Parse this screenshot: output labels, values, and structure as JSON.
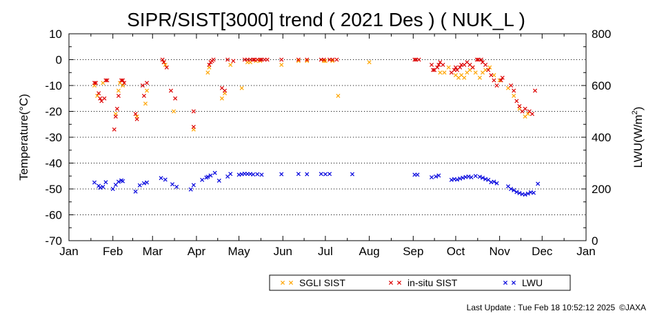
{
  "chart_data": {
    "type": "scatter",
    "title": "SIPR/SIST[3000] trend ( 2021 Des ) ( NUK_L )",
    "xlabel": "",
    "ylabel": "Temperature(°C)",
    "y2label": "LWU(W/m²)",
    "y2label_base": "LWU(W/m",
    "y2label_sup": "2",
    "y2label_end": ")",
    "x_unit": "day of year",
    "xlim": [
      0,
      365
    ],
    "ylim": [
      -70,
      10
    ],
    "y2lim": [
      0,
      800
    ],
    "x_ticks": [
      {
        "label": "Jan",
        "x": 0
      },
      {
        "label": "Feb",
        "x": 31
      },
      {
        "label": "Mar",
        "x": 59
      },
      {
        "label": "Apr",
        "x": 90
      },
      {
        "label": "May",
        "x": 120
      },
      {
        "label": "Jun",
        "x": 151
      },
      {
        "label": "Jul",
        "x": 181
      },
      {
        "label": "Aug",
        "x": 212
      },
      {
        "label": "Sep",
        "x": 243
      },
      {
        "label": "Oct",
        "x": 273
      },
      {
        "label": "Nov",
        "x": 304
      },
      {
        "label": "Dec",
        "x": 334
      },
      {
        "label": "Jan",
        "x": 365
      }
    ],
    "y_ticks": [
      10,
      0,
      -10,
      -20,
      -30,
      -40,
      -50,
      -60,
      -70
    ],
    "y2_ticks": [
      800,
      600,
      400,
      200,
      0
    ],
    "grid": "horizontal dotted",
    "legend_position": "bottom",
    "series": [
      {
        "name": "SGLI SIST",
        "axis": "left",
        "color": "#ffa500",
        "points": [
          [
            18,
            -10
          ],
          [
            20,
            -14
          ],
          [
            24,
            -9
          ],
          [
            33,
            -21
          ],
          [
            35,
            -12
          ],
          [
            36,
            -9
          ],
          [
            38,
            -10
          ],
          [
            48,
            -22
          ],
          [
            54,
            -17
          ],
          [
            55,
            -12
          ],
          [
            67,
            -1
          ],
          [
            68,
            -2
          ],
          [
            74,
            -20
          ],
          [
            88,
            -27
          ],
          [
            98,
            -5
          ],
          [
            99,
            -3
          ],
          [
            108,
            -15
          ],
          [
            110,
            -13
          ],
          [
            114,
            -2
          ],
          [
            122,
            -11
          ],
          [
            126,
            -1
          ],
          [
            128,
            -1
          ],
          [
            132,
            -0.5
          ],
          [
            135,
            -0.5
          ],
          [
            150,
            -2
          ],
          [
            162,
            -0.5
          ],
          [
            168,
            -0.5
          ],
          [
            180,
            -0.5
          ],
          [
            181,
            -0.5
          ],
          [
            186,
            -0.5
          ],
          [
            190,
            -14
          ],
          [
            212,
            -1
          ],
          [
            262,
            -5
          ],
          [
            265,
            -5
          ],
          [
            268,
            -3
          ],
          [
            273,
            -6
          ],
          [
            275,
            -7
          ],
          [
            277,
            -6
          ],
          [
            279,
            -7
          ],
          [
            281,
            -5
          ],
          [
            283,
            -4
          ],
          [
            285,
            -3
          ],
          [
            287,
            -5
          ],
          [
            290,
            -7
          ],
          [
            292,
            -5
          ],
          [
            294,
            -4
          ],
          [
            297,
            -3
          ],
          [
            300,
            -6
          ],
          [
            304,
            -8
          ],
          [
            310,
            -11
          ],
          [
            314,
            -14
          ],
          [
            318,
            -19
          ],
          [
            322,
            -22
          ],
          [
            324,
            -21
          ]
        ]
      },
      {
        "name": "in-situ SIST",
        "axis": "left",
        "color": "#dd0000",
        "points": [
          [
            18,
            -9
          ],
          [
            19,
            -9
          ],
          [
            21,
            -13
          ],
          [
            22,
            -15
          ],
          [
            23,
            -16
          ],
          [
            25,
            -15
          ],
          [
            26,
            -8
          ],
          [
            27,
            -8
          ],
          [
            32,
            -27
          ],
          [
            33,
            -22
          ],
          [
            34,
            -19
          ],
          [
            35,
            -14
          ],
          [
            37,
            -8
          ],
          [
            38,
            -8
          ],
          [
            39,
            -9
          ],
          [
            47,
            -21
          ],
          [
            48,
            -23
          ],
          [
            52,
            -10
          ],
          [
            53,
            -14
          ],
          [
            55,
            -9
          ],
          [
            66,
            0
          ],
          [
            67,
            -1
          ],
          [
            69,
            -3
          ],
          [
            72,
            -12
          ],
          [
            75,
            -15
          ],
          [
            88,
            -20
          ],
          [
            88,
            -26
          ],
          [
            99,
            -2
          ],
          [
            100,
            -1
          ],
          [
            101,
            -0.5
          ],
          [
            102,
            0
          ],
          [
            108,
            -11
          ],
          [
            110,
            -12
          ],
          [
            112,
            0
          ],
          [
            116,
            -0.5
          ],
          [
            124,
            0
          ],
          [
            126,
            0
          ],
          [
            128,
            0
          ],
          [
            130,
            0
          ],
          [
            131,
            0
          ],
          [
            133,
            0
          ],
          [
            135,
            0
          ],
          [
            136,
            0
          ],
          [
            138,
            0
          ],
          [
            140,
            0
          ],
          [
            150,
            0
          ],
          [
            162,
            0
          ],
          [
            168,
            0
          ],
          [
            178,
            0
          ],
          [
            180,
            0
          ],
          [
            184,
            0
          ],
          [
            186,
            0
          ],
          [
            189,
            0
          ],
          [
            244,
            0
          ],
          [
            245,
            0
          ],
          [
            247,
            0
          ],
          [
            256,
            -2
          ],
          [
            257,
            -4
          ],
          [
            258,
            -4
          ],
          [
            260,
            -3
          ],
          [
            261,
            -2
          ],
          [
            262,
            -1
          ],
          [
            264,
            -2
          ],
          [
            270,
            -5
          ],
          [
            272,
            -4
          ],
          [
            273,
            -3
          ],
          [
            274,
            -4
          ],
          [
            276,
            -3
          ],
          [
            277,
            -2
          ],
          [
            279,
            -2
          ],
          [
            281,
            -1
          ],
          [
            283,
            -2
          ],
          [
            285,
            -3
          ],
          [
            288,
            0
          ],
          [
            289,
            0
          ],
          [
            291,
            0
          ],
          [
            292,
            -1
          ],
          [
            294,
            -2
          ],
          [
            296,
            -4
          ],
          [
            298,
            -6
          ],
          [
            300,
            -8
          ],
          [
            302,
            -10
          ],
          [
            305,
            -8
          ],
          [
            306,
            -7
          ],
          [
            312,
            -10
          ],
          [
            314,
            -12
          ],
          [
            316,
            -16
          ],
          [
            318,
            -18
          ],
          [
            320,
            -20
          ],
          [
            322,
            -19
          ],
          [
            325,
            -20
          ],
          [
            327,
            -21
          ],
          [
            329,
            -12
          ]
        ]
      },
      {
        "name": "LWU",
        "axis": "right",
        "color": "#0000dd",
        "points": [
          [
            18,
            225
          ],
          [
            21,
            212
          ],
          [
            22,
            205
          ],
          [
            24,
            208
          ],
          [
            26,
            226
          ],
          [
            31,
            200
          ],
          [
            33,
            216
          ],
          [
            35,
            228
          ],
          [
            37,
            233
          ],
          [
            38,
            230
          ],
          [
            47,
            190
          ],
          [
            50,
            214
          ],
          [
            53,
            222
          ],
          [
            55,
            225
          ],
          [
            65,
            242
          ],
          [
            68,
            236
          ],
          [
            73,
            218
          ],
          [
            76,
            208
          ],
          [
            86,
            198
          ],
          [
            88,
            215
          ],
          [
            94,
            235
          ],
          [
            97,
            244
          ],
          [
            98,
            247
          ],
          [
            100,
            252
          ],
          [
            103,
            262
          ],
          [
            106,
            232
          ],
          [
            112,
            248
          ],
          [
            114,
            258
          ],
          [
            120,
            255
          ],
          [
            122,
            257
          ],
          [
            124,
            259
          ],
          [
            126,
            258
          ],
          [
            128,
            258
          ],
          [
            130,
            256
          ],
          [
            133,
            257
          ],
          [
            136,
            255
          ],
          [
            150,
            257
          ],
          [
            162,
            258
          ],
          [
            168,
            257
          ],
          [
            178,
            258
          ],
          [
            181,
            257
          ],
          [
            184,
            258
          ],
          [
            200,
            257
          ],
          [
            244,
            255
          ],
          [
            246,
            255
          ],
          [
            256,
            245
          ],
          [
            259,
            248
          ],
          [
            261,
            252
          ],
          [
            270,
            235
          ],
          [
            272,
            238
          ],
          [
            274,
            236
          ],
          [
            276,
            240
          ],
          [
            278,
            243
          ],
          [
            280,
            246
          ],
          [
            282,
            248
          ],
          [
            284,
            245
          ],
          [
            287,
            250
          ],
          [
            290,
            247
          ],
          [
            292,
            243
          ],
          [
            294,
            238
          ],
          [
            296,
            235
          ],
          [
            298,
            226
          ],
          [
            300,
            228
          ],
          [
            302,
            222
          ],
          [
            310,
            210
          ],
          [
            312,
            200
          ],
          [
            314,
            195
          ],
          [
            316,
            188
          ],
          [
            318,
            184
          ],
          [
            320,
            180
          ],
          [
            322,
            178
          ],
          [
            324,
            182
          ],
          [
            326,
            187
          ],
          [
            328,
            185
          ],
          [
            331,
            220
          ]
        ]
      }
    ]
  },
  "footer": {
    "last_update": "Last Update : Tue Feb 18 10:52:12 2025",
    "credit": "©JAXA"
  }
}
